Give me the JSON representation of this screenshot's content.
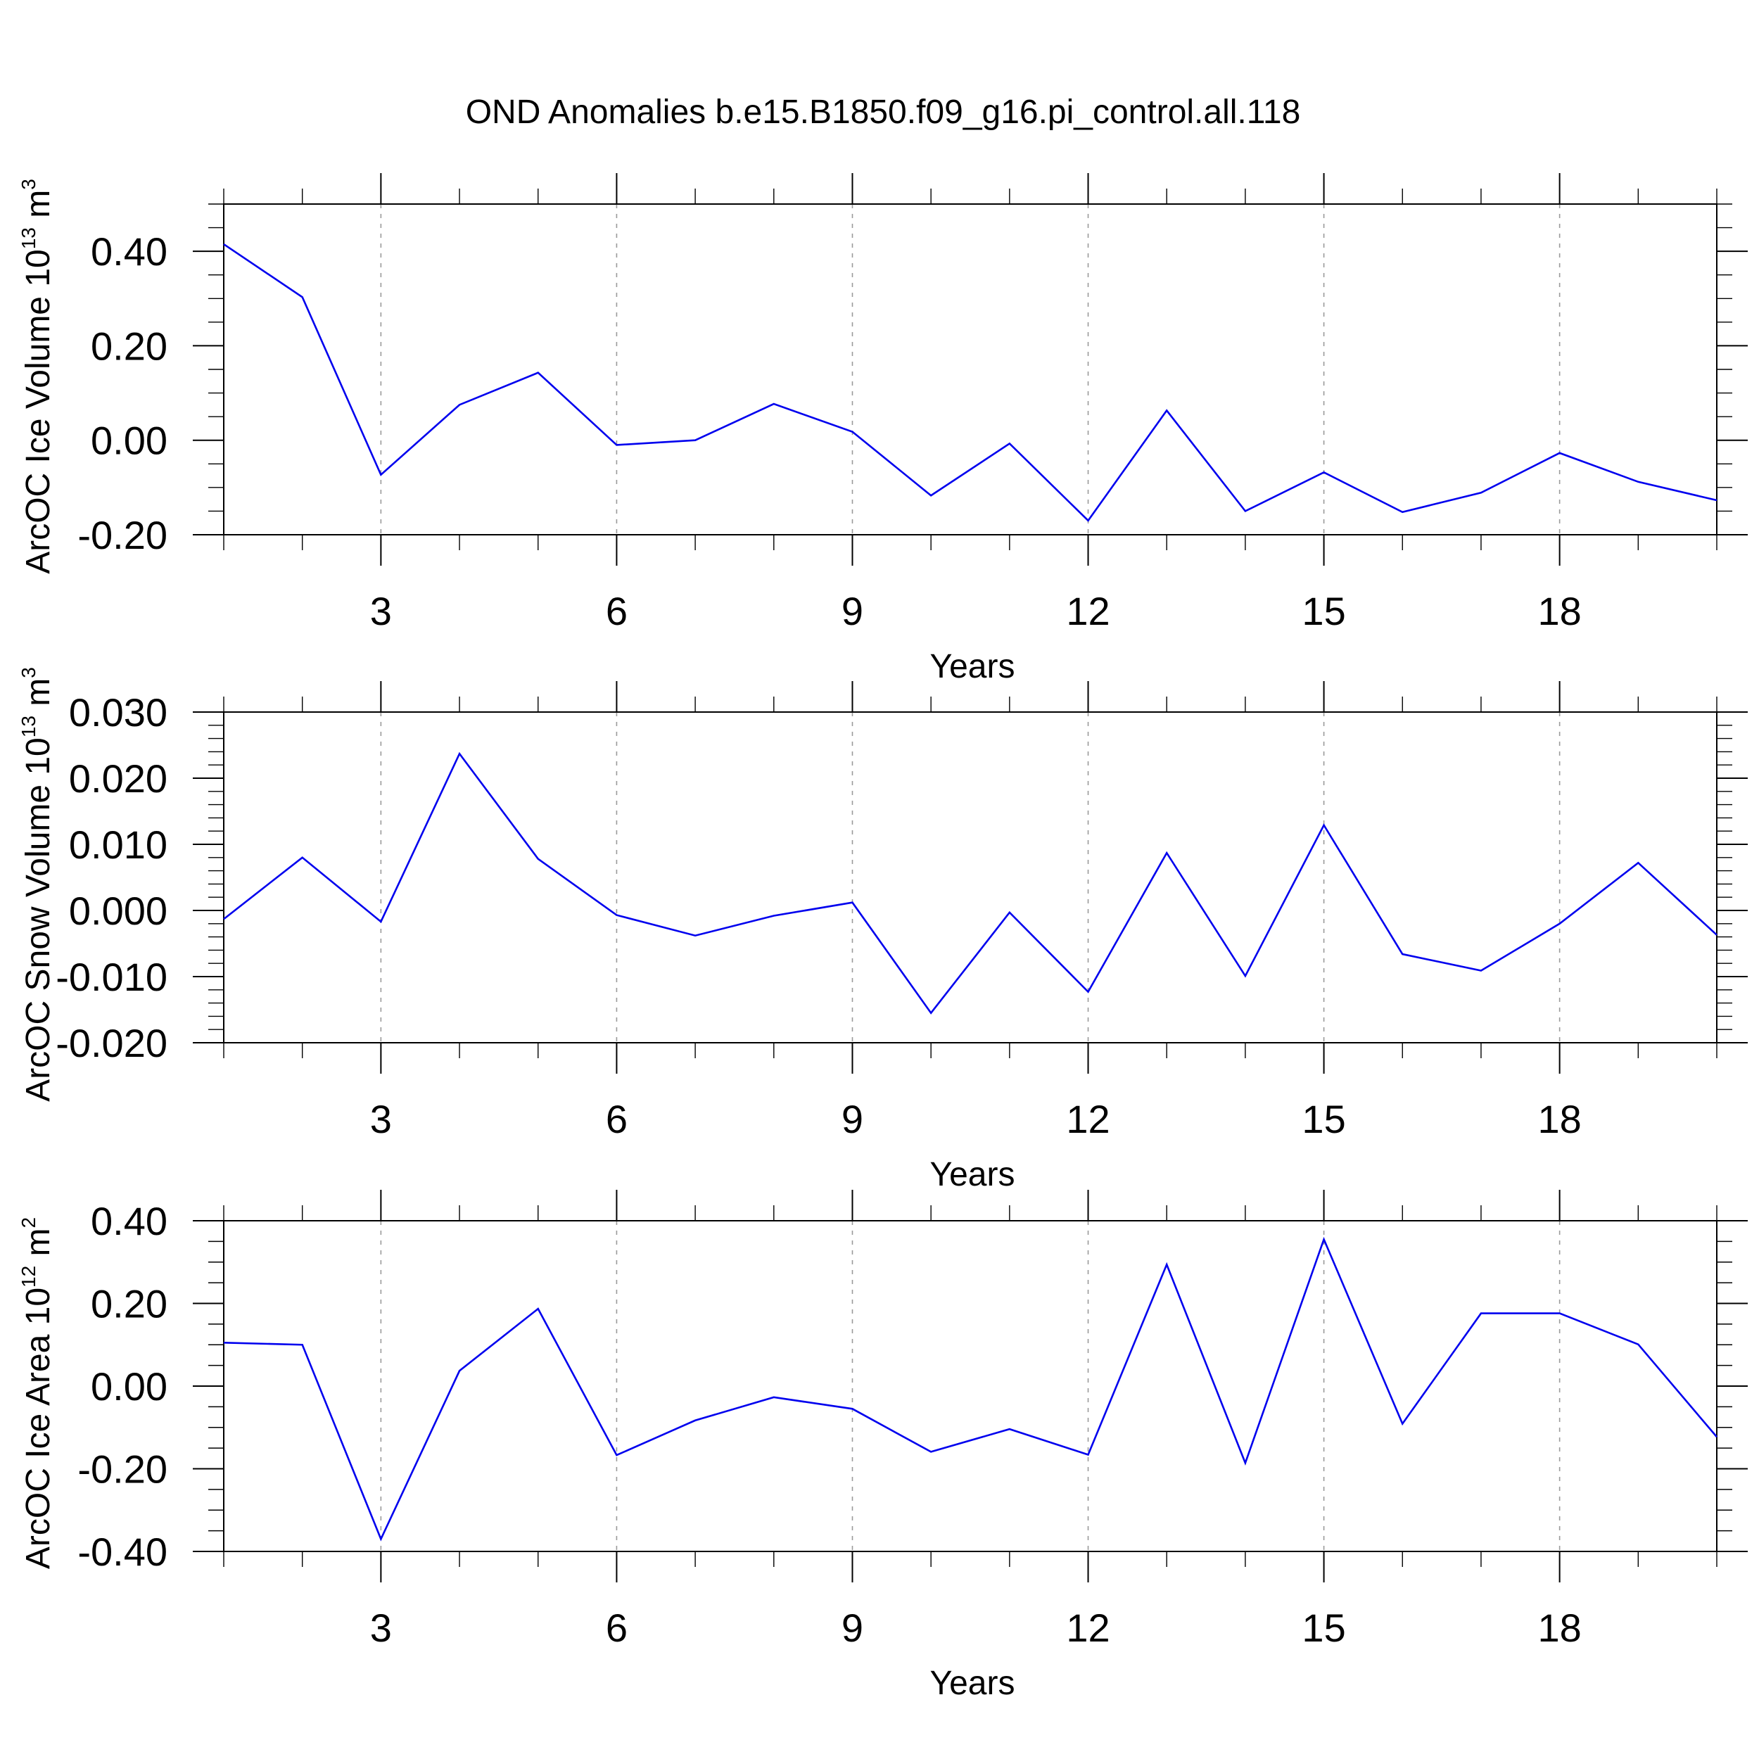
{
  "title": "OND Anomalies b.e15.B1850.f09_g16.pi_control.all.118",
  "chart_data": [
    {
      "type": "line",
      "xlabel": "Years",
      "ylabel_parts": [
        "ArcOC Ice Volume 10",
        "13",
        " m",
        "3"
      ],
      "xlim": [
        1,
        20
      ],
      "ylim": [
        -0.2,
        0.5
      ],
      "x_major_ticks": [
        3,
        6,
        9,
        12,
        15,
        18
      ],
      "x_minor_ticks": [
        1,
        2,
        4,
        5,
        7,
        8,
        10,
        11,
        13,
        14,
        16,
        17,
        19,
        20
      ],
      "y_major_ticks": [
        -0.2,
        0,
        0.2,
        0.4
      ],
      "y_tick_labels": [
        "-0.20",
        "0.00",
        "0.20",
        "0.40"
      ],
      "y_minor_step": 0.05,
      "x_tick_labels": [
        "3",
        "6",
        "9",
        "12",
        "15",
        "18"
      ],
      "grid": "vertical dashed at major x ticks",
      "series": [
        {
          "color": "#0000ee",
          "x": [
            1,
            2,
            3,
            4,
            5,
            6,
            7,
            8,
            9,
            10,
            11,
            12,
            13,
            14,
            15,
            16,
            17,
            18,
            19,
            20
          ],
          "values": [
            0.415,
            0.303,
            -0.073,
            0.075,
            0.143,
            -0.01,
            0.0,
            0.077,
            0.018,
            -0.117,
            -0.007,
            -0.17,
            0.063,
            -0.15,
            -0.068,
            -0.152,
            -0.111,
            -0.027,
            -0.088,
            -0.127
          ]
        }
      ]
    },
    {
      "type": "line",
      "xlabel": "Years",
      "ylabel_parts": [
        "ArcOC Snow Volume 10",
        "13",
        " m",
        "3"
      ],
      "xlim": [
        1,
        20
      ],
      "ylim": [
        -0.02,
        0.03
      ],
      "x_major_ticks": [
        3,
        6,
        9,
        12,
        15,
        18
      ],
      "x_minor_ticks": [
        1,
        2,
        4,
        5,
        7,
        8,
        10,
        11,
        13,
        14,
        16,
        17,
        19,
        20
      ],
      "y_major_ticks": [
        -0.02,
        -0.01,
        0,
        0.01,
        0.02,
        0.03
      ],
      "y_tick_labels": [
        "-0.020",
        "-0.010",
        "0.000",
        "0.010",
        "0.020",
        "0.030"
      ],
      "y_minor_step": 0.002,
      "x_tick_labels": [
        "3",
        "6",
        "9",
        "12",
        "15",
        "18"
      ],
      "grid": "vertical dashed at major x ticks",
      "series": [
        {
          "color": "#0000ee",
          "x": [
            1,
            2,
            3,
            4,
            5,
            6,
            7,
            8,
            9,
            10,
            11,
            12,
            13,
            14,
            15,
            16,
            17,
            18,
            19,
            20
          ],
          "values": [
            -0.0013,
            0.008,
            -0.0017,
            0.0237,
            0.0078,
            -0.0007,
            -0.0038,
            -0.0008,
            0.0012,
            -0.0155,
            -0.0003,
            -0.0123,
            0.0087,
            -0.0099,
            0.0129,
            -0.0066,
            -0.0091,
            -0.002,
            0.0072,
            -0.0037
          ]
        }
      ]
    },
    {
      "type": "line",
      "xlabel": "Years",
      "ylabel_parts": [
        "ArcOC Ice Area 10",
        "12",
        " m",
        "2"
      ],
      "xlim": [
        1,
        20
      ],
      "ylim": [
        -0.4,
        0.4
      ],
      "x_major_ticks": [
        3,
        6,
        9,
        12,
        15,
        18
      ],
      "x_minor_ticks": [
        1,
        2,
        4,
        5,
        7,
        8,
        10,
        11,
        13,
        14,
        16,
        17,
        19,
        20
      ],
      "y_major_ticks": [
        -0.4,
        -0.2,
        0,
        0.2,
        0.4
      ],
      "y_tick_labels": [
        "-0.40",
        "-0.20",
        "0.00",
        "0.20",
        "0.40"
      ],
      "y_minor_step": 0.05,
      "x_tick_labels": [
        "3",
        "6",
        "9",
        "12",
        "15",
        "18"
      ],
      "grid": "vertical dashed at major x ticks",
      "series": [
        {
          "color": "#0000ee",
          "x": [
            1,
            2,
            3,
            4,
            5,
            6,
            7,
            8,
            9,
            10,
            11,
            12,
            13,
            14,
            15,
            16,
            17,
            18,
            19,
            20
          ],
          "values": [
            0.105,
            0.1,
            -0.37,
            0.037,
            0.187,
            -0.167,
            -0.083,
            -0.027,
            -0.055,
            -0.159,
            -0.104,
            -0.166,
            0.294,
            -0.186,
            0.355,
            -0.091,
            0.176,
            0.176,
            0.101,
            -0.123
          ]
        }
      ]
    }
  ]
}
